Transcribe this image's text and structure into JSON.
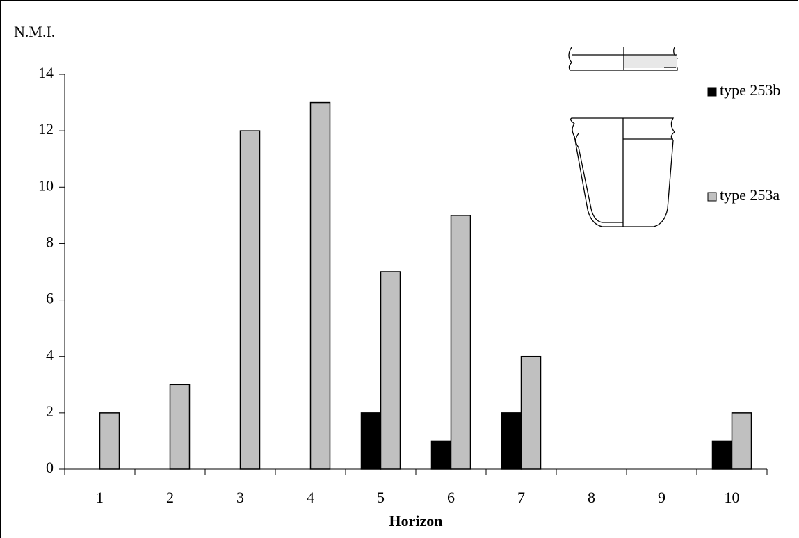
{
  "chart_data": {
    "type": "bar",
    "y_label": "N.M.I.",
    "x_label": "Horizon",
    "categories": [
      "1",
      "2",
      "3",
      "4",
      "5",
      "6",
      "7",
      "8",
      "9",
      "10"
    ],
    "series": [
      {
        "name": "type 253b",
        "color": "#000000",
        "values": [
          0,
          0,
          0,
          0,
          2,
          1,
          2,
          0,
          0,
          1
        ]
      },
      {
        "name": "type 253a",
        "color": "#c0c0c0",
        "values": [
          2,
          3,
          12,
          13,
          7,
          9,
          4,
          0,
          0,
          2
        ]
      }
    ],
    "ylim": [
      0,
      14
    ],
    "yticks": [
      0,
      2,
      4,
      6,
      8,
      10,
      12,
      14
    ],
    "grid": false
  }
}
